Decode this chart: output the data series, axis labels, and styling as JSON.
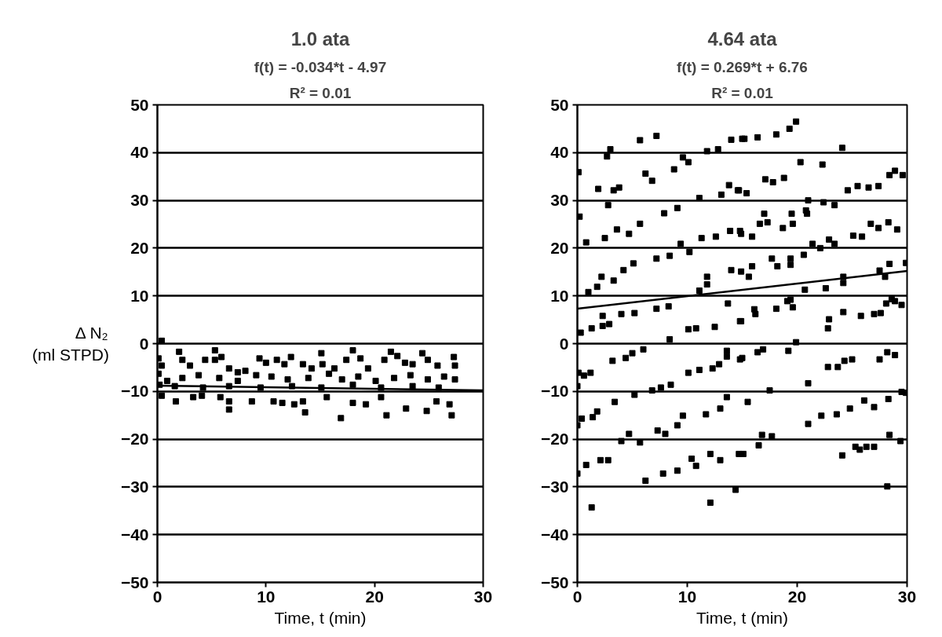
{
  "chart_data": [
    {
      "type": "scatter",
      "title": "1.0 ata",
      "subtitle": "f(t) = -0.034*t - 4.97",
      "annotations": [
        "R² = 0.01"
      ],
      "xlabel": "Time, t (min)",
      "ylabel": "Δ N₂\n(ml STPD)",
      "xlim": [
        0,
        30
      ],
      "ylim": [
        -50,
        50
      ],
      "xticks": [
        0,
        10,
        20,
        30
      ],
      "yticks": [
        -50,
        -40,
        -30,
        -20,
        -10,
        0,
        10,
        20,
        30,
        40,
        50
      ],
      "grid": "y",
      "series": [
        {
          "marker": "square",
          "color": "#000000",
          "x": [
            0.4,
            0.1,
            0.4,
            2.0,
            2.3,
            3.0,
            4.4,
            5.3,
            5.3,
            5.9,
            6.6,
            7.4,
            8.1,
            9.4,
            10.0,
            11.0,
            11.7,
            12.3,
            13.4,
            14.2,
            15.1,
            15.2,
            16.3,
            17.4,
            18.0,
            18.7,
            19.4,
            20.9,
            21.5,
            22.1,
            22.8,
            23.5,
            24.4,
            24.9,
            25.8,
            27.3,
            27.4,
            0.1,
            0.9,
            2.3,
            3.8,
            5.7,
            7.4,
            9.1,
            10.5,
            12.0,
            13.9,
            15.8,
            17.0,
            18.5,
            20.1,
            21.8,
            23.3,
            24.9,
            26.4,
            27.4,
            0.2,
            1.6,
            4.2,
            6.6,
            9.5,
            12.4,
            15.1,
            18.0,
            20.6,
            23.5,
            25.9,
            0.4,
            1.7,
            3.3,
            4.1,
            5.8,
            6.6,
            6.6,
            8.7,
            10.7,
            11.5,
            12.6,
            13.6,
            13.4,
            15.6,
            16.9,
            18.0,
            19.2,
            20.6,
            21.1,
            22.9,
            24.8,
            25.7,
            26.9,
            27.1
          ],
          "values": [
            0.6,
            -3.1,
            -4.6,
            -1.7,
            -3.4,
            -4.6,
            -3.4,
            -1.4,
            -3.4,
            -2.8,
            -5.2,
            -6.0,
            -5.7,
            -3.1,
            -4.0,
            -3.4,
            -4.3,
            -2.8,
            -4.3,
            -5.2,
            -2.0,
            -4.3,
            -5.2,
            -3.4,
            -1.4,
            -3.1,
            -5.2,
            -3.4,
            -1.7,
            -2.6,
            -4.0,
            -4.3,
            -2.0,
            -3.4,
            -4.6,
            -2.8,
            -4.6,
            -6.3,
            -7.8,
            -7.2,
            -6.6,
            -7.2,
            -7.8,
            -6.6,
            -6.9,
            -7.5,
            -7.2,
            -6.3,
            -7.5,
            -6.9,
            -7.8,
            -7.2,
            -6.6,
            -7.5,
            -6.9,
            -7.5,
            -8.6,
            -8.9,
            -9.2,
            -8.9,
            -9.2,
            -8.9,
            -9.2,
            -8.6,
            -9.2,
            -8.9,
            -9.2,
            -10.9,
            -12.1,
            -11.2,
            -10.9,
            -11.2,
            -12.1,
            -13.8,
            -12.1,
            -12.1,
            -12.4,
            -12.7,
            -14.4,
            -12.1,
            -11.2,
            -15.6,
            -12.4,
            -12.7,
            -11.2,
            -15.0,
            -13.6,
            -14.1,
            -12.1,
            -12.7,
            -15.0
          ]
        },
        {
          "type": "line",
          "color": "#000000",
          "x": [
            0,
            30
          ],
          "values": [
            -8.8,
            -9.8
          ]
        }
      ]
    },
    {
      "type": "scatter",
      "title": "4.64 ata",
      "subtitle": "f(t) = 0.269*t + 6.76",
      "annotations": [
        "R² = 0.01"
      ],
      "xlabel": "Time, t (min)",
      "xlim": [
        0,
        30
      ],
      "ylim": [
        -50,
        50
      ],
      "xticks": [
        0,
        10,
        20,
        30
      ],
      "yticks": [
        -50,
        -40,
        -30,
        -20,
        -10,
        0,
        10,
        20,
        30,
        40,
        50
      ],
      "grid": "y",
      "series": [
        {
          "marker": "square",
          "color": "#000000",
          "x": [
            5.7,
            7.2,
            3.0,
            2.7,
            0.1,
            1.9,
            3.3,
            3.8,
            6.2,
            6.8,
            8.8,
            10.1,
            11.8,
            14.0,
            15.0,
            9.6,
            12.8,
            13.8,
            14.6,
            13.1,
            11.1,
            9.1,
            7.9,
            5.7,
            3.6,
            4.7,
            2.5,
            0.2,
            0.8,
            2.8,
            9.4,
            10.2,
            11.3,
            12.6,
            13.9,
            14.9,
            8.4,
            7.2,
            5.1,
            4.2,
            2.2,
            1.8,
            3.3,
            1.0,
            11.8,
            11.8,
            14.0,
            11.1,
            15.2,
            16.4,
            18.1,
            19.3,
            19.9,
            24.1,
            20.3,
            22.3,
            17.1,
            18.8,
            17.8,
            14.7,
            15.4,
            24.6,
            25.5,
            26.5,
            27.4,
            28.4,
            28.9,
            29.6,
            21.0,
            20.8,
            22.4,
            23.4,
            17.0,
            16.6,
            17.3,
            19.5,
            19.6,
            18.7,
            14.8,
            15.9,
            20.9,
            21.4,
            22.1,
            22.9,
            23.4,
            25.1,
            25.9,
            26.7,
            27.4,
            28.3,
            29.1,
            20.6,
            19.4,
            17.7,
            18.2,
            19.4,
            15.9,
            14.9,
            15.6,
            28.4,
            29.9,
            24.2,
            24.2,
            27.5,
            28.0,
            20.7,
            22.6,
            19.4,
            28.6,
            0.3,
            1.3,
            2.3,
            2.3,
            2.9,
            4.0,
            5.2,
            7.2,
            8.3,
            13.7,
            14.8,
            10.1,
            10.8,
            12.5,
            8.4,
            0.1,
            0.6,
            1.2,
            0.0,
            3.2,
            4.4,
            5.0,
            6.0,
            6.8,
            7.6,
            8.5,
            5.2,
            10.1,
            11.1,
            12.3,
            12.9,
            13.6,
            13.6,
            14.8,
            3.4,
            1.8,
            1.4,
            0.4,
            0.0,
            4.7,
            4.0,
            5.7,
            7.3,
            8.0,
            9.1,
            9.6,
            11.7,
            13.0,
            13.6,
            0.0,
            0.8,
            2.1,
            2.8,
            6.2,
            7.8,
            9.1,
            10.4,
            10.8,
            12.1,
            13.0,
            14.7,
            1.3,
            12.1,
            14.4,
            14.9,
            16.1,
            16.2,
            18.1,
            19.1,
            19.6,
            22.9,
            22.8,
            24.2,
            25.8,
            27.0,
            27.6,
            28.1,
            28.9,
            29.5,
            15.0,
            16.4,
            16.9,
            19.2,
            19.9,
            22.8,
            23.7,
            24.3,
            25.0,
            27.5,
            28.2,
            28.9,
            21.0,
            17.5,
            15.5,
            21.0,
            22.2,
            23.6,
            24.8,
            26.1,
            27.0,
            28.3,
            29.5,
            29.9,
            15.1,
            16.5,
            16.8,
            17.7,
            24.1,
            25.3,
            25.7,
            26.3,
            27.0,
            28.4,
            29.4,
            28.2
          ],
          "values": [
            42.6,
            43.5,
            40.7,
            39.2,
            35.9,
            32.4,
            32.1,
            32.7,
            35.6,
            34.1,
            36.5,
            38.0,
            40.3,
            42.7,
            42.9,
            39.0,
            40.7,
            33.2,
            32.1,
            31.2,
            30.5,
            28.4,
            27.3,
            25.1,
            23.9,
            23.0,
            22.1,
            26.6,
            21.2,
            29.0,
            20.9,
            19.2,
            22.1,
            22.4,
            23.6,
            23.0,
            18.4,
            17.8,
            16.8,
            15.4,
            14.0,
            11.9,
            13.2,
            10.8,
            14.0,
            12.4,
            15.4,
            11.1,
            42.9,
            43.2,
            43.8,
            45.0,
            46.5,
            41.0,
            38.0,
            37.5,
            34.4,
            34.7,
            33.8,
            32.1,
            31.5,
            32.1,
            33.0,
            32.7,
            33.0,
            35.3,
            36.2,
            35.3,
            30.0,
            27.9,
            29.6,
            29.0,
            27.2,
            25.1,
            25.4,
            27.2,
            25.1,
            24.2,
            23.6,
            22.4,
            27.2,
            20.9,
            20.0,
            21.8,
            20.9,
            22.6,
            22.4,
            25.1,
            24.2,
            25.4,
            23.9,
            18.6,
            17.8,
            17.8,
            16.2,
            16.5,
            16.2,
            15.1,
            14.0,
            16.7,
            16.9,
            14.0,
            12.7,
            15.3,
            14.0,
            11.3,
            11.6,
            9.2,
            9.3,
            2.3,
            3.2,
            5.8,
            3.7,
            4.1,
            6.2,
            6.4,
            7.3,
            7.8,
            8.4,
            4.7,
            3.0,
            3.2,
            3.5,
            0.9,
            -6.1,
            -6.7,
            -6.1,
            -8.9,
            -3.6,
            -3.0,
            -2.0,
            -1.2,
            -9.8,
            -9.2,
            -8.6,
            -10.7,
            -6.1,
            -5.5,
            -5.2,
            -4.3,
            -1.5,
            -2.7,
            -3.3,
            -12.2,
            -14.2,
            -15.4,
            -15.7,
            -17.1,
            -18.9,
            -20.4,
            -20.7,
            -18.2,
            -18.9,
            -17.1,
            -15.1,
            -14.8,
            -13.6,
            -11.2,
            -27.2,
            -25.4,
            -24.4,
            -24.4,
            -28.7,
            -27.2,
            -26.6,
            -24.1,
            -25.6,
            -23.1,
            -24.4,
            -23.1,
            -34.3,
            -33.3,
            -30.6,
            4.7,
            7.2,
            6.2,
            7.3,
            8.9,
            7.6,
            5.1,
            3.2,
            6.6,
            5.8,
            6.2,
            6.4,
            8.4,
            8.9,
            8.1,
            -3.0,
            -1.8,
            -1.2,
            -1.5,
            0.3,
            -4.9,
            -4.9,
            -3.6,
            -3.3,
            -3.3,
            -1.8,
            -2.4,
            -8.3,
            -9.8,
            -12.2,
            -16.8,
            -15.1,
            -14.8,
            -13.6,
            -11.9,
            -13.3,
            -11.6,
            -10.1,
            -10.3,
            -23.1,
            -21.3,
            -19.1,
            -19.4,
            -23.4,
            -21.6,
            -22.2,
            -21.6,
            -21.6,
            -19.1,
            -20.4,
            -29.9
          ]
        },
        {
          "type": "line",
          "color": "#000000",
          "x": [
            0,
            30
          ],
          "values": [
            7.3,
            15.2
          ]
        }
      ]
    }
  ]
}
